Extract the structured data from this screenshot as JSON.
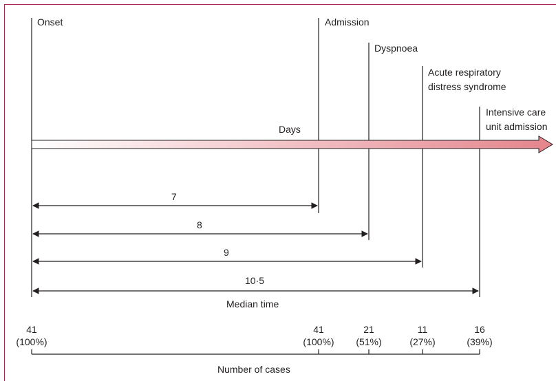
{
  "events": [
    {
      "key": "onset",
      "label": "Onset"
    },
    {
      "key": "admission",
      "label": "Admission"
    },
    {
      "key": "dyspnoea",
      "label": "Dyspnoea"
    },
    {
      "key": "ards",
      "label_line1": "Acute respiratory",
      "label_line2": "distress syndrome"
    },
    {
      "key": "icu",
      "label_line1": "Intensive care",
      "label_line2": "unit admission"
    }
  ],
  "axis_label": "Days",
  "intervals": [
    {
      "to": "admission",
      "value": "7"
    },
    {
      "to": "dyspnoea",
      "value": "8"
    },
    {
      "to": "ards",
      "value": "9"
    },
    {
      "to": "icu",
      "value": "10·5"
    }
  ],
  "median_label": "Median time",
  "cases": [
    {
      "at": "onset",
      "n": "41",
      "pct": "(100%)"
    },
    {
      "at": "admission",
      "n": "41",
      "pct": "(100%)"
    },
    {
      "at": "dyspnoea",
      "n": "21",
      "pct": "(51%)"
    },
    {
      "at": "ards",
      "n": "11",
      "pct": "(27%)"
    },
    {
      "at": "icu",
      "n": "16",
      "pct": "(39%)"
    }
  ],
  "cases_label": "Number of cases",
  "colors": {
    "frame": "#a12b5a",
    "arrow_start": "#ffffff",
    "arrow_end": "#e5848c",
    "ink": "#231f20"
  }
}
